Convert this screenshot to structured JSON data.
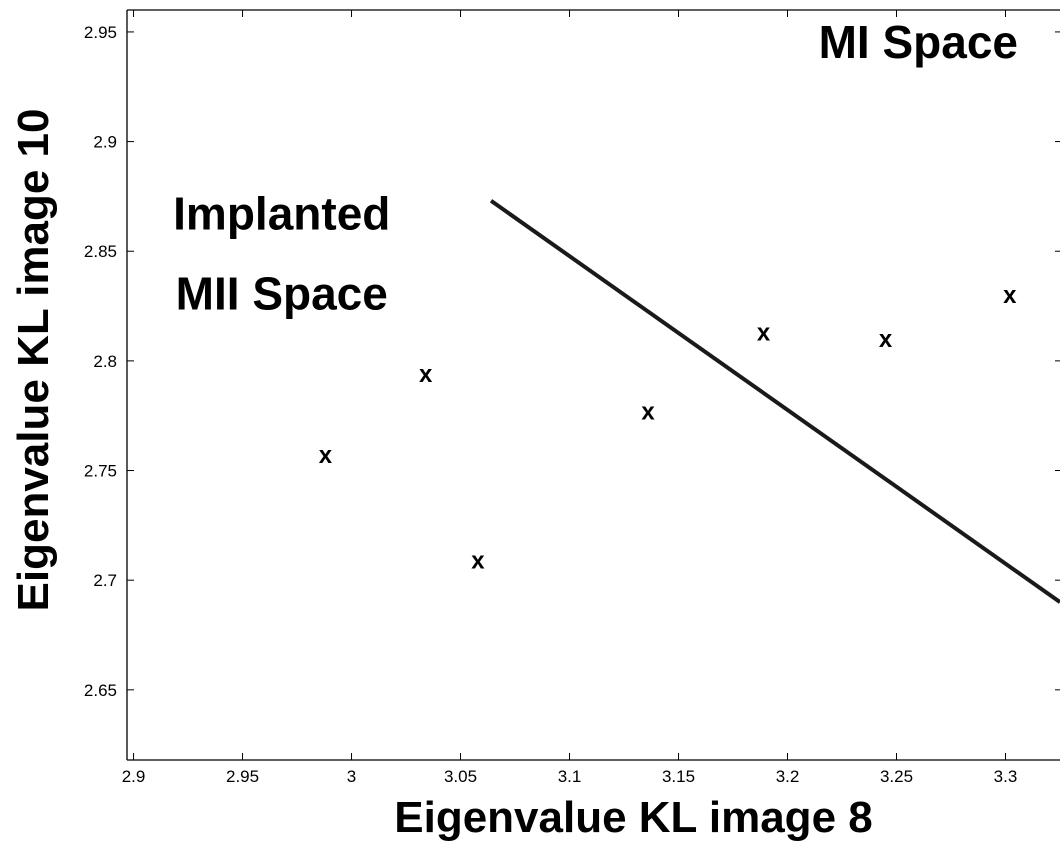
{
  "chart_data": {
    "type": "scatter",
    "xlabel": "Eigenvalue KL image 8",
    "ylabel": "Eigenvalue KL image 10",
    "xlim": [
      2.897,
      3.325
    ],
    "ylim": [
      2.618,
      2.96
    ],
    "x_ticks": [
      2.9,
      2.95,
      3.0,
      3.05,
      3.1,
      3.15,
      3.2,
      3.25,
      3.3
    ],
    "x_tick_labels": [
      "2.9",
      "2.95",
      "3",
      "3.05",
      "3.1",
      "3.15",
      "3.2",
      "3.25",
      "3.3"
    ],
    "y_ticks": [
      2.65,
      2.7,
      2.75,
      2.8,
      2.85,
      2.9,
      2.95
    ],
    "y_tick_labels": [
      "2.65",
      "2.7",
      "2.75",
      "2.8",
      "2.85",
      "2.9",
      "2.95"
    ],
    "marker": "x",
    "series": [
      {
        "points": [
          {
            "x": 2.988,
            "y": 2.757
          },
          {
            "x": 3.034,
            "y": 2.794
          },
          {
            "x": 3.058,
            "y": 2.709
          },
          {
            "x": 3.136,
            "y": 2.777
          },
          {
            "x": 3.189,
            "y": 2.813
          },
          {
            "x": 3.245,
            "y": 2.81
          },
          {
            "x": 3.302,
            "y": 2.83
          }
        ]
      }
    ],
    "boundary_line": {
      "x1": 3.064,
      "y1": 2.873,
      "x2": 3.325,
      "y2": 2.69
    },
    "annotations": [
      {
        "lines": [
          "MI Space"
        ],
        "anchor": {
          "x": 3.26,
          "y": 2.938
        }
      },
      {
        "lines": [
          "Implanted",
          "MII Space"
        ],
        "anchor": {
          "x": 2.968,
          "y": 2.86
        }
      }
    ],
    "grid": false,
    "legend": "none",
    "frame": "left-top-bottom"
  }
}
